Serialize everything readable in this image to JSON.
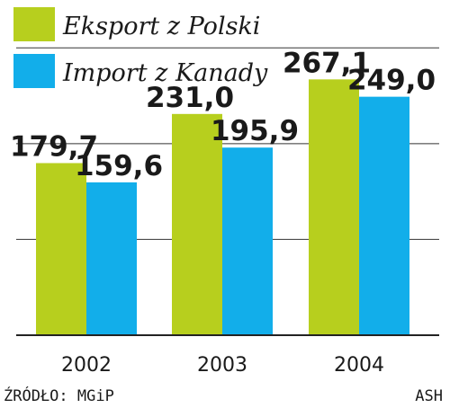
{
  "chart_data": {
    "type": "bar",
    "categories": [
      "2002",
      "2003",
      "2004"
    ],
    "series": [
      {
        "name": "Eksport z Polski",
        "values": [
          179.7,
          231.0,
          267.1
        ],
        "labels": [
          "179,7",
          "231,0",
          "267,1"
        ],
        "color": "#b7cf1e"
      },
      {
        "name": "Import z Kanady",
        "values": [
          159.6,
          195.9,
          249.0
        ],
        "labels": [
          "159,6",
          "195,9",
          "249,0"
        ],
        "color": "#12aeea"
      }
    ],
    "ylim": [
      0,
      350
    ],
    "grid": true,
    "legend_position": "top-left"
  },
  "footer": {
    "source": "ŹRÓDŁO: MGiP",
    "author": "ASH"
  }
}
